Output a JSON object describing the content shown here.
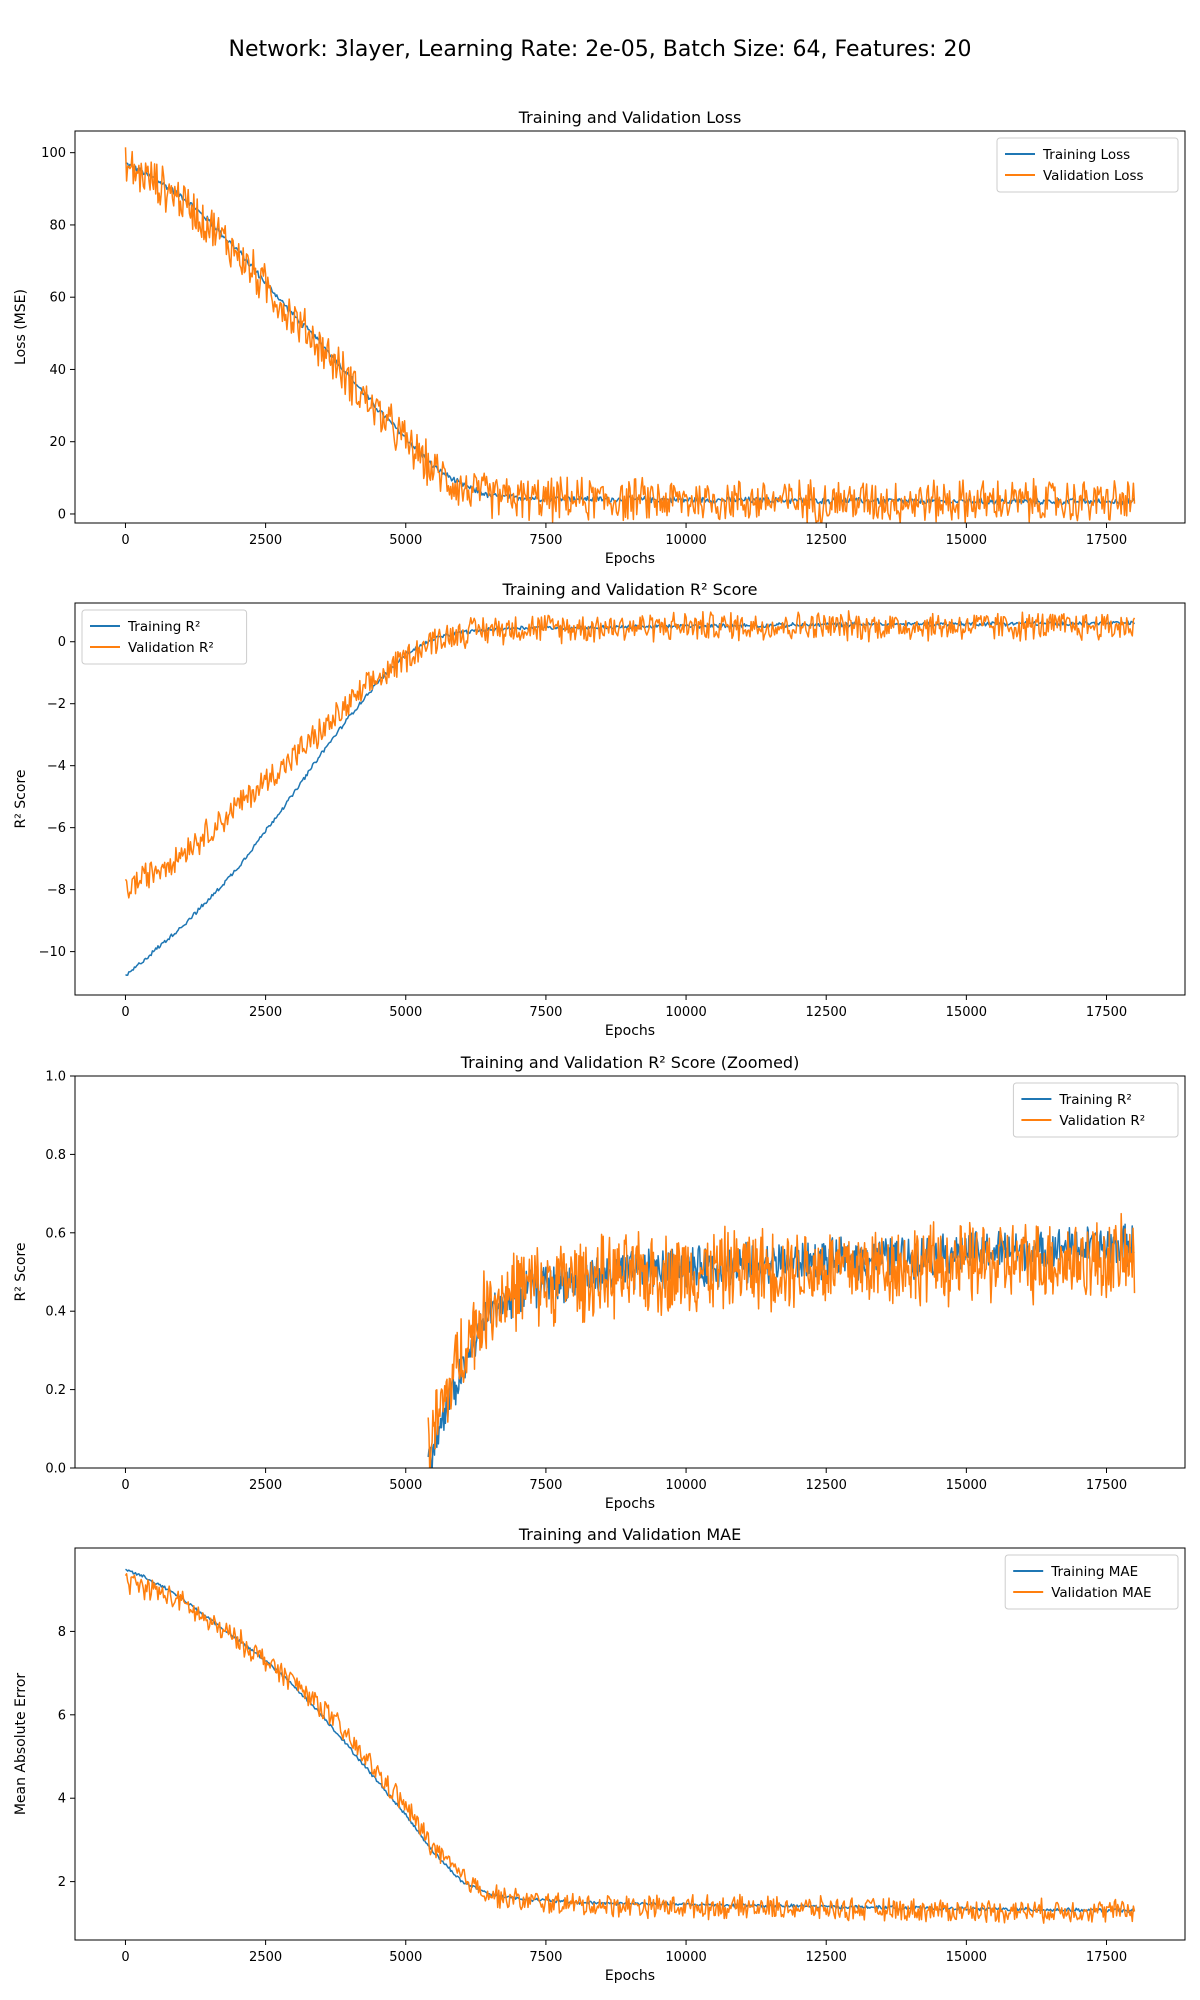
{
  "suptitle": "Network: 3layer, Learning Rate: 2e-05, Batch Size: 64, Features: 20",
  "colors": {
    "training": "#1f77b4",
    "validation": "#ff7f0e"
  },
  "chart_data": [
    {
      "type": "line",
      "title": "Training and Validation Loss",
      "xlabel": "Epochs",
      "ylabel": "Loss (MSE)",
      "xlim": [
        -900,
        18900
      ],
      "ylim": [
        -2.5,
        106
      ],
      "xticks": [
        0,
        2500,
        5000,
        7500,
        10000,
        12500,
        15000,
        17500
      ],
      "yticks": [
        0,
        20,
        40,
        60,
        80,
        100
      ],
      "legend": "top-right",
      "grid": false,
      "series": [
        {
          "name": "Training Loss",
          "color": "#1f77b4",
          "noise": 1.0,
          "x": [
            0,
            500,
            1000,
            1500,
            2000,
            2500,
            3000,
            3500,
            4000,
            4500,
            5000,
            5500,
            6000,
            6500,
            7000,
            7500,
            8000,
            9000,
            10000,
            12500,
            15000,
            18000
          ],
          "y": [
            97,
            93,
            88,
            81,
            73,
            64,
            55,
            47,
            38,
            29,
            21,
            13,
            8,
            5,
            4.5,
            4.3,
            4.2,
            4.0,
            3.9,
            3.7,
            3.5,
            3.4
          ]
        },
        {
          "name": "Validation Loss",
          "color": "#ff7f0e",
          "noise": 7.0,
          "x": [
            0,
            500,
            1000,
            1500,
            2000,
            2500,
            3000,
            3500,
            4000,
            4500,
            5000,
            5500,
            6000,
            6500,
            7000,
            7500,
            8000,
            9000,
            10000,
            12500,
            15000,
            18000
          ],
          "y": [
            96,
            92,
            87,
            80,
            72,
            63,
            54,
            46,
            37,
            28,
            20,
            12,
            7,
            5,
            4.3,
            4.0,
            4.0,
            3.9,
            3.8,
            3.6,
            3.5,
            3.4
          ]
        }
      ]
    },
    {
      "type": "line",
      "title": "Training and Validation R² Score",
      "xlabel": "Epochs",
      "ylabel": "R² Score",
      "xlim": [
        -900,
        18900
      ],
      "ylim": [
        -11.4,
        1.25
      ],
      "xticks": [
        0,
        2500,
        5000,
        7500,
        10000,
        12500,
        15000,
        17500
      ],
      "yticks": [
        -10,
        -8,
        -6,
        -4,
        -2,
        0
      ],
      "legend": "top-left",
      "grid": false,
      "series": [
        {
          "name": "Training R²",
          "color": "#1f77b4",
          "noise": 0.08,
          "x": [
            0,
            500,
            1000,
            1500,
            2000,
            2500,
            3000,
            3500,
            4000,
            4500,
            5000,
            5500,
            6000,
            6500,
            7000,
            8000,
            10000,
            12500,
            15000,
            18000
          ],
          "y": [
            -10.8,
            -10.0,
            -9.2,
            -8.3,
            -7.3,
            -6.1,
            -4.9,
            -3.6,
            -2.4,
            -1.3,
            -0.4,
            0.1,
            0.3,
            0.4,
            0.45,
            0.45,
            0.5,
            0.55,
            0.58,
            0.6
          ]
        },
        {
          "name": "Validation R²",
          "color": "#ff7f0e",
          "noise": 0.55,
          "x": [
            0,
            500,
            1000,
            1500,
            2000,
            2500,
            3000,
            3500,
            4000,
            4500,
            5000,
            5500,
            6000,
            6500,
            7000,
            8000,
            10000,
            12500,
            15000,
            18000
          ],
          "y": [
            -8.0,
            -7.4,
            -6.8,
            -6.1,
            -5.3,
            -4.5,
            -3.7,
            -2.9,
            -2.0,
            -1.2,
            -0.5,
            0.05,
            0.3,
            0.4,
            0.45,
            0.45,
            0.5,
            0.5,
            0.5,
            0.5
          ]
        }
      ]
    },
    {
      "type": "line",
      "title": "Training and Validation R² Score (Zoomed)",
      "xlabel": "Epochs",
      "ylabel": "R² Score",
      "xlim": [
        -900,
        18900
      ],
      "ylim": [
        0.0,
        1.0
      ],
      "xticks": [
        0,
        2500,
        5000,
        7500,
        10000,
        12500,
        15000,
        17500
      ],
      "yticks": [
        0.0,
        0.2,
        0.4,
        0.6,
        0.8,
        1.0
      ],
      "legend": "top-right",
      "grid": false,
      "series": [
        {
          "name": "Training R²",
          "color": "#1f77b4",
          "noise": 0.06,
          "x": [
            5400,
            6000,
            6500,
            7000,
            7500,
            8000,
            9000,
            10000,
            11000,
            12500,
            14000,
            15000,
            16500,
            18000
          ],
          "y": [
            0.02,
            0.25,
            0.4,
            0.45,
            0.47,
            0.48,
            0.5,
            0.51,
            0.52,
            0.53,
            0.54,
            0.55,
            0.56,
            0.57
          ]
        },
        {
          "name": "Validation R²",
          "color": "#ff7f0e",
          "noise": 0.12,
          "x": [
            5400,
            6000,
            6500,
            7000,
            7500,
            8000,
            9000,
            10000,
            11000,
            12500,
            14000,
            15000,
            16500,
            18000
          ],
          "y": [
            0.05,
            0.3,
            0.42,
            0.46,
            0.47,
            0.48,
            0.49,
            0.5,
            0.51,
            0.51,
            0.52,
            0.52,
            0.53,
            0.53
          ]
        }
      ]
    },
    {
      "type": "line",
      "title": "Training and Validation MAE",
      "xlabel": "Epochs",
      "ylabel": "Mean Absolute Error",
      "xlim": [
        -900,
        18900
      ],
      "ylim": [
        0.6,
        10.0
      ],
      "xticks": [
        0,
        2500,
        5000,
        7500,
        10000,
        12500,
        15000,
        17500
      ],
      "yticks": [
        2,
        4,
        6,
        8
      ],
      "legend": "top-right",
      "grid": false,
      "series": [
        {
          "name": "Training MAE",
          "color": "#1f77b4",
          "noise": 0.05,
          "x": [
            0,
            500,
            1000,
            1500,
            2000,
            2500,
            3000,
            3500,
            4000,
            4500,
            5000,
            5500,
            6000,
            6500,
            7000,
            7500,
            8000,
            10000,
            12500,
            15000,
            18000
          ],
          "y": [
            9.5,
            9.2,
            8.8,
            8.3,
            7.8,
            7.3,
            6.7,
            6.0,
            5.2,
            4.4,
            3.6,
            2.7,
            2.0,
            1.7,
            1.6,
            1.55,
            1.5,
            1.45,
            1.4,
            1.35,
            1.3
          ]
        },
        {
          "name": "Validation MAE",
          "color": "#ff7f0e",
          "noise": 0.32,
          "x": [
            0,
            500,
            1000,
            1500,
            2000,
            2500,
            3000,
            3500,
            4000,
            4500,
            5000,
            5500,
            6000,
            6500,
            7000,
            7500,
            8000,
            10000,
            12500,
            15000,
            18000
          ],
          "y": [
            9.2,
            9.0,
            8.7,
            8.2,
            7.8,
            7.3,
            6.8,
            6.2,
            5.4,
            4.6,
            3.8,
            2.8,
            2.1,
            1.7,
            1.55,
            1.5,
            1.45,
            1.4,
            1.35,
            1.3,
            1.3
          ]
        }
      ]
    }
  ]
}
